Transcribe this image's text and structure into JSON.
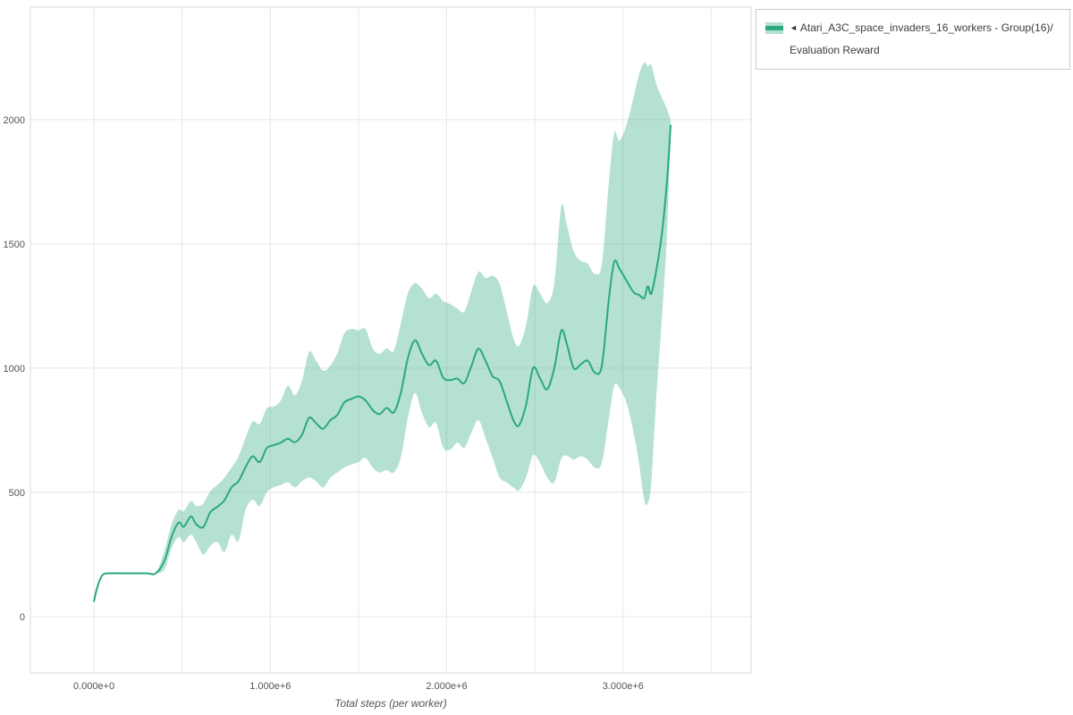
{
  "page": {
    "background": "#ffffff"
  },
  "legend": {
    "collapse_icon": "◄",
    "entries": [
      {
        "label": "Atari_A3C_space_invaders_16_workers - Group(16)/",
        "label_line2": "Evaluation Reward",
        "color": "#2aa87f",
        "band_opacity": 0.35
      }
    ]
  },
  "axes": {
    "x_label": "Total steps (per worker)",
    "x_ticks": [
      {
        "v": 0,
        "label": "0.000e+0"
      },
      {
        "v": 1,
        "label": "1.000e+6"
      },
      {
        "v": 2,
        "label": "2.000e+6"
      },
      {
        "v": 3,
        "label": "3.000e+6"
      }
    ],
    "y_ticks": [
      {
        "v": 0,
        "label": "0"
      },
      {
        "v": 500,
        "label": "500"
      },
      {
        "v": 1000,
        "label": "1000"
      },
      {
        "v": 1500,
        "label": "1500"
      },
      {
        "v": 2000,
        "label": "2000"
      }
    ],
    "x_gridlines": [
      0,
      0.5,
      1,
      1.5,
      2,
      2.5,
      3,
      3.5
    ],
    "y_gridlines": [
      0,
      500,
      1000,
      1500,
      2000
    ]
  },
  "style": {
    "grid_color": "#e8e8e8",
    "frame_color": "#d9d9d9",
    "tick_color": "#555555",
    "line_width": 2
  },
  "chart_data": {
    "type": "line",
    "title": "Atari_A3C_space_invaders_16_workers - Group(16)/Evaluation Reward",
    "xlabel": "Total steps (per worker)",
    "ylabel": "",
    "x_units": "steps (millions)",
    "xlim": [
      -0.36,
      3.726
    ],
    "ylim": [
      -227,
      2453
    ],
    "grid": true,
    "legend_position": "top-right",
    "series": [
      {
        "name": "Atari_A3C_space_invaders_16_workers - Group(16)/Evaluation Reward",
        "color": "#2aa87f",
        "band_opacity": 0.35,
        "x": [
          0.0,
          0.02,
          0.05,
          0.1,
          0.2,
          0.3,
          0.35,
          0.4,
          0.44,
          0.48,
          0.51,
          0.55,
          0.58,
          0.62,
          0.66,
          0.7,
          0.74,
          0.78,
          0.82,
          0.86,
          0.9,
          0.94,
          0.98,
          1.02,
          1.06,
          1.1,
          1.14,
          1.18,
          1.22,
          1.26,
          1.3,
          1.34,
          1.38,
          1.42,
          1.46,
          1.5,
          1.54,
          1.58,
          1.62,
          1.66,
          1.7,
          1.74,
          1.78,
          1.82,
          1.86,
          1.9,
          1.94,
          1.98,
          2.02,
          2.06,
          2.1,
          2.14,
          2.18,
          2.22,
          2.26,
          2.3,
          2.34,
          2.38,
          2.41,
          2.45,
          2.49,
          2.53,
          2.57,
          2.61,
          2.65,
          2.68,
          2.72,
          2.76,
          2.8,
          2.84,
          2.88,
          2.92,
          2.95,
          2.98,
          3.02,
          3.06,
          3.09,
          3.12,
          3.14,
          3.16,
          3.19,
          3.22,
          3.25,
          3.27
        ],
        "mean": [
          60,
          120,
          168,
          174,
          174,
          174,
          174,
          225,
          320,
          378,
          362,
          403,
          372,
          360,
          420,
          442,
          468,
          520,
          545,
          602,
          645,
          622,
          678,
          690,
          700,
          716,
          702,
          732,
          800,
          778,
          756,
          790,
          812,
          862,
          876,
          886,
          870,
          832,
          815,
          840,
          822,
          900,
          1040,
          1112,
          1058,
          1012,
          1030,
          962,
          952,
          958,
          940,
          1008,
          1078,
          1030,
          968,
          948,
          868,
          788,
          770,
          852,
          1000,
          958,
          915,
          1000,
          1150,
          1100,
          1000,
          1015,
          1030,
          982,
          1010,
          1280,
          1428,
          1400,
          1352,
          1305,
          1295,
          1282,
          1330,
          1300,
          1400,
          1540,
          1760,
          1980
        ],
        "lower": [
          60,
          120,
          168,
          174,
          174,
          174,
          174,
          190,
          275,
          320,
          300,
          330,
          300,
          250,
          285,
          300,
          260,
          330,
          305,
          430,
          470,
          445,
          500,
          520,
          530,
          540,
          520,
          545,
          560,
          545,
          520,
          558,
          580,
          600,
          612,
          622,
          638,
          600,
          580,
          590,
          580,
          640,
          800,
          900,
          820,
          762,
          780,
          680,
          672,
          700,
          680,
          740,
          790,
          720,
          640,
          560,
          540,
          518,
          508,
          560,
          650,
          618,
          560,
          540,
          635,
          648,
          632,
          645,
          632,
          600,
          620,
          800,
          930,
          920,
          860,
          740,
          620,
          470,
          456,
          540,
          900,
          1200,
          1550,
          1930
        ],
        "upper": [
          60,
          120,
          168,
          174,
          174,
          174,
          174,
          265,
          370,
          430,
          425,
          465,
          445,
          455,
          505,
          530,
          560,
          600,
          645,
          720,
          785,
          775,
          838,
          845,
          870,
          930,
          890,
          950,
          1065,
          1030,
          990,
          1010,
          1060,
          1140,
          1158,
          1152,
          1158,
          1080,
          1058,
          1080,
          1070,
          1180,
          1300,
          1342,
          1320,
          1282,
          1300,
          1270,
          1258,
          1240,
          1228,
          1310,
          1388,
          1362,
          1372,
          1340,
          1230,
          1118,
          1090,
          1172,
          1330,
          1300,
          1262,
          1342,
          1650,
          1580,
          1470,
          1432,
          1420,
          1380,
          1420,
          1750,
          1945,
          1915,
          1980,
          2090,
          2180,
          2230,
          2215,
          2220,
          2140,
          2090,
          2040,
          2000
        ]
      }
    ]
  }
}
